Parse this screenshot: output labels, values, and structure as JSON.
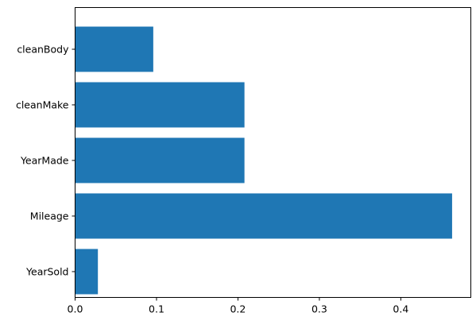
{
  "chart_data": {
    "type": "bar",
    "orientation": "horizontal",
    "title": "",
    "xlabel": "",
    "ylabel": "",
    "categories": [
      "YearSold",
      "Mileage",
      "YearMade",
      "cleanMake",
      "cleanBody"
    ],
    "values": [
      0.028,
      0.463,
      0.208,
      0.208,
      0.096
    ],
    "xlim": [
      0,
      0.486
    ],
    "xticks": [
      0.0,
      0.1,
      0.2,
      0.3,
      0.4
    ],
    "xtick_labels": [
      "0.0",
      "0.1",
      "0.2",
      "0.3",
      "0.4"
    ],
    "grid": false,
    "bar_color": "#1f77b4"
  }
}
